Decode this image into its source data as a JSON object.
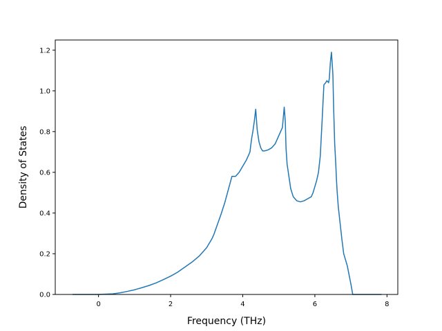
{
  "chart_data": {
    "type": "line",
    "title": "",
    "xlabel": "Frequency (THz)",
    "ylabel": "Density of States",
    "xlim": [
      -1.2,
      8.3
    ],
    "ylim": [
      0.0,
      1.25
    ],
    "xticks": [
      0,
      2,
      4,
      6,
      8
    ],
    "xtick_labels": [
      "0",
      "2",
      "4",
      "6",
      "8"
    ],
    "yticks": [
      0.0,
      0.2,
      0.4,
      0.6,
      0.8,
      1.0,
      1.2
    ],
    "ytick_labels": [
      "0.0",
      "0.2",
      "0.4",
      "0.6",
      "0.8",
      "1.0",
      "1.2"
    ],
    "grid": false,
    "legend": "none",
    "line_color": "#1f77b4",
    "series": [
      {
        "x": [
          -0.72,
          0.0,
          0.4,
          0.6,
          0.8,
          1.0,
          1.2,
          1.4,
          1.6,
          1.8,
          2.0,
          2.2,
          2.4,
          2.6,
          2.8,
          2.9,
          3.0,
          3.05,
          3.1,
          3.15,
          3.2,
          3.25,
          3.3,
          3.4,
          3.5,
          3.6,
          3.7,
          3.8,
          3.9,
          4.0,
          4.1,
          4.15,
          4.2,
          4.22,
          4.25,
          4.28,
          4.32,
          4.36,
          4.4,
          4.45,
          4.5,
          4.55,
          4.6,
          4.7,
          4.8,
          4.9,
          5.0,
          5.1,
          5.15,
          5.18,
          5.2,
          5.23,
          5.28,
          5.33,
          5.4,
          5.5,
          5.6,
          5.7,
          5.8,
          5.9,
          5.95,
          6.0,
          6.05,
          6.1,
          6.15,
          6.2,
          6.25,
          6.3,
          6.33,
          6.36,
          6.38,
          6.4,
          6.43,
          6.46,
          6.5,
          6.52,
          6.55,
          6.58,
          6.6,
          6.62,
          6.65,
          6.7,
          6.75,
          6.8,
          6.9,
          7.0,
          7.05,
          7.1,
          7.15,
          7.25,
          7.5,
          7.85
        ],
        "y": [
          0.0,
          0.0,
          0.003,
          0.008,
          0.015,
          0.023,
          0.033,
          0.044,
          0.057,
          0.073,
          0.09,
          0.11,
          0.135,
          0.16,
          0.19,
          0.21,
          0.23,
          0.245,
          0.26,
          0.275,
          0.295,
          0.32,
          0.345,
          0.395,
          0.45,
          0.515,
          0.58,
          0.58,
          0.6,
          0.63,
          0.66,
          0.68,
          0.7,
          0.73,
          0.77,
          0.8,
          0.85,
          0.91,
          0.81,
          0.75,
          0.72,
          0.705,
          0.705,
          0.71,
          0.72,
          0.74,
          0.78,
          0.82,
          0.92,
          0.85,
          0.72,
          0.64,
          0.58,
          0.52,
          0.48,
          0.46,
          0.455,
          0.46,
          0.47,
          0.48,
          0.5,
          0.53,
          0.56,
          0.6,
          0.68,
          0.85,
          1.03,
          1.04,
          1.05,
          1.045,
          1.04,
          1.06,
          1.14,
          1.19,
          1.08,
          0.92,
          0.74,
          0.64,
          0.56,
          0.5,
          0.43,
          0.35,
          0.27,
          0.2,
          0.14,
          0.05,
          0.0,
          0.0,
          0.0,
          0.0,
          0.0,
          0.0
        ]
      }
    ]
  }
}
